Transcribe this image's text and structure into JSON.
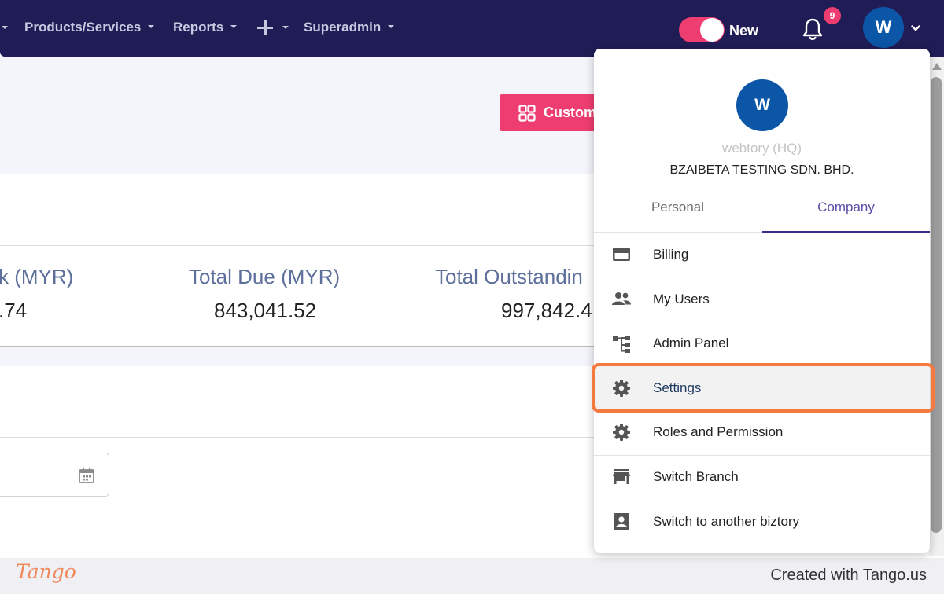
{
  "nav": {
    "items": [
      {
        "label": "Products/Services"
      },
      {
        "label": "Reports"
      },
      {
        "label": "Superadmin"
      }
    ],
    "toggle_label": "New",
    "notification_count": "9",
    "avatar_initial": "W"
  },
  "toolbar": {
    "custom_button_label": "Custom"
  },
  "stats": [
    {
      "label": "k (MYR)",
      "value": ".74"
    },
    {
      "label": "Total Due (MYR)",
      "value": "843,041.52"
    },
    {
      "label": "Total Outstandin",
      "value": "997,842.4"
    }
  ],
  "dropdown": {
    "avatar_initial": "W",
    "branch": "webtory (HQ)",
    "company": "BZAIBETA TESTING SDN. BHD.",
    "tabs": [
      {
        "label": "Personal",
        "active": false
      },
      {
        "label": "Company",
        "active": true
      }
    ],
    "items": [
      {
        "label": "Billing",
        "icon": "credit-card-icon"
      },
      {
        "label": "My Users",
        "icon": "users-icon"
      },
      {
        "label": "Admin Panel",
        "icon": "hierarchy-icon"
      },
      {
        "label": "Settings",
        "icon": "gear-icon",
        "highlighted": true
      },
      {
        "label": "Roles and Permission",
        "icon": "gear-icon"
      },
      {
        "label": "Switch Branch",
        "icon": "store-icon"
      },
      {
        "label": "Switch to another biztory",
        "icon": "contact-card-icon"
      }
    ]
  },
  "footer": {
    "logo": "Tango",
    "text": "Created with Tango.us"
  },
  "colors": {
    "nav_bg": "#201c56",
    "accent": "#ee3d70",
    "avatar": "#0c56a8",
    "highlight": "#f47a3f",
    "tab_active": "#5e4aa8"
  }
}
